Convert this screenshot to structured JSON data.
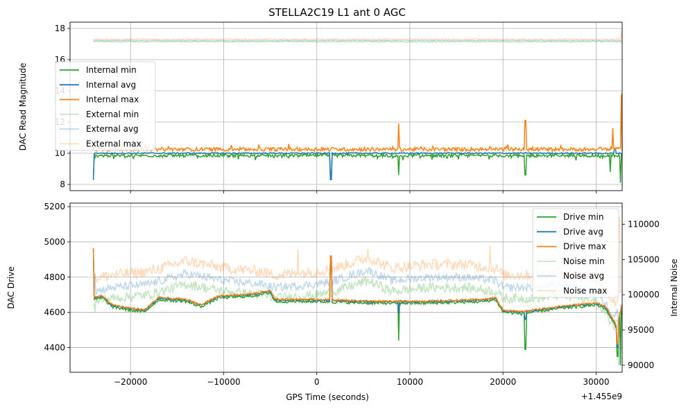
{
  "chart_data": [
    {
      "type": "line",
      "title": "STELLA2C19 L1 ant 0 AGC",
      "xlabel": "",
      "ylabel": "DAC Read Magnitude",
      "xlim": [
        -26500,
        32800
      ],
      "ylim": [
        7.6,
        18.4
      ],
      "xticks": [
        -20000,
        -10000,
        0,
        10000,
        20000,
        30000
      ],
      "yticks": [
        8,
        10,
        12,
        14,
        16,
        18
      ],
      "ytick_labels": [
        "8",
        "10",
        "12",
        "14",
        "16",
        "18"
      ],
      "grid": true,
      "legend_position": "center-left",
      "series": [
        {
          "name": "Internal min",
          "color": "#2ca02c",
          "alpha": 1,
          "base": 9.85,
          "noise": 0.1,
          "spikes": [
            [
              -24000,
              8.3
            ],
            [
              1500,
              8.3
            ],
            [
              8800,
              8.6
            ],
            [
              22400,
              8.6
            ],
            [
              31500,
              8.8
            ],
            [
              32600,
              8.1
            ]
          ]
        },
        {
          "name": "Internal avg",
          "color": "#1f77b4",
          "alpha": 1,
          "base": 10.0,
          "noise": 0.04,
          "spikes": [
            [
              -24000,
              8.3
            ],
            [
              1500,
              8.3
            ],
            [
              32000,
              10.3
            ]
          ]
        },
        {
          "name": "Internal max",
          "color": "#ff7f0e",
          "alpha": 1,
          "base": 10.25,
          "noise": 0.12,
          "spikes": [
            [
              -24000,
              10.7
            ],
            [
              8800,
              11.9
            ],
            [
              22400,
              12.1
            ],
            [
              31800,
              11.6
            ],
            [
              32700,
              13.8
            ]
          ]
        },
        {
          "name": "External min",
          "color": "#2ca02c",
          "alpha": 0.28,
          "base": 17.15,
          "noise": 0.04,
          "spikes": []
        },
        {
          "name": "External avg",
          "color": "#1f77b4",
          "alpha": 0.28,
          "base": 17.22,
          "noise": 0.03,
          "spikes": []
        },
        {
          "name": "External max",
          "color": "#ff7f0e",
          "alpha": 0.28,
          "base": 17.3,
          "noise": 0.04,
          "spikes": [
            [
              32700,
              17.9
            ]
          ]
        }
      ]
    },
    {
      "type": "line",
      "title": "",
      "xlabel": "GPS Time (seconds)",
      "x_offset_label": "+1.455e9",
      "ylabel": "DAC Drive",
      "ylabel_right": "Internal Noise",
      "xlim": [
        -26500,
        32800
      ],
      "ylim": [
        4260,
        5220
      ],
      "ylim_right": [
        89000,
        113000
      ],
      "xticks": [
        -20000,
        -10000,
        0,
        10000,
        20000,
        30000
      ],
      "xtick_labels": [
        "−20000",
        "−10000",
        "0",
        "10000",
        "20000",
        "30000"
      ],
      "yticks": [
        4400,
        4600,
        4800,
        5000,
        5200
      ],
      "ytick_labels": [
        "4400",
        "4600",
        "4800",
        "5000",
        "5200"
      ],
      "yticks_right": [
        90000,
        95000,
        100000,
        105000,
        110000
      ],
      "ytick_labels_right": [
        "90000",
        "95000",
        "100000",
        "105000",
        "110000"
      ],
      "grid": true,
      "legend_position": "upper-right",
      "drive_profile": [
        [
          -24000,
          4680
        ],
        [
          -23000,
          4690
        ],
        [
          -22000,
          4640
        ],
        [
          -20000,
          4620
        ],
        [
          -18500,
          4610
        ],
        [
          -17000,
          4680
        ],
        [
          -14000,
          4670
        ],
        [
          -12500,
          4640
        ],
        [
          -10500,
          4690
        ],
        [
          -7000,
          4700
        ],
        [
          -5000,
          4720
        ],
        [
          -4500,
          4670
        ],
        [
          0,
          4670
        ],
        [
          6000,
          4660
        ],
        [
          12000,
          4660
        ],
        [
          18000,
          4670
        ],
        [
          19200,
          4680
        ],
        [
          20000,
          4610
        ],
        [
          22000,
          4600
        ],
        [
          26000,
          4630
        ],
        [
          30000,
          4650
        ],
        [
          31000,
          4630
        ],
        [
          32200,
          4520
        ],
        [
          32800,
          4640
        ]
      ],
      "noise_profile": [
        [
          -24000,
          100500
        ],
        [
          -22000,
          101000
        ],
        [
          -18000,
          101500
        ],
        [
          -14000,
          103000
        ],
        [
          -10000,
          102000
        ],
        [
          -6000,
          101500
        ],
        [
          -4500,
          101000
        ],
        [
          0,
          101500
        ],
        [
          2000,
          102000
        ],
        [
          5500,
          103500
        ],
        [
          8000,
          102000
        ],
        [
          12000,
          102500
        ],
        [
          16000,
          102500
        ],
        [
          19200,
          102000
        ],
        [
          20000,
          101000
        ],
        [
          24000,
          101000
        ],
        [
          26000,
          101500
        ],
        [
          30000,
          100500
        ],
        [
          32000,
          97000
        ],
        [
          32800,
          99000
        ]
      ],
      "series": [
        {
          "name": "Drive min",
          "axis": "left",
          "color": "#2ca02c",
          "alpha": 1,
          "offset": -8,
          "noise": 8,
          "spikes": [
            [
              -24000,
              4960
            ],
            [
              1500,
              4910
            ],
            [
              8800,
              4440
            ],
            [
              22400,
              4390
            ],
            [
              32300,
              4350
            ],
            [
              32600,
              4300
            ]
          ]
        },
        {
          "name": "Drive avg",
          "axis": "left",
          "color": "#1f77b4",
          "alpha": 1,
          "offset": 0,
          "noise": 5,
          "spikes": [
            [
              -24000,
              4960
            ],
            [
              1500,
              4920
            ],
            [
              8800,
              4590
            ],
            [
              22400,
              4560
            ],
            [
              32300,
              4400
            ]
          ]
        },
        {
          "name": "Drive max",
          "axis": "left",
          "color": "#ff7f0e",
          "alpha": 1,
          "offset": 4,
          "noise": 5,
          "spikes": [
            [
              -24000,
              4965
            ],
            [
              1500,
              4920
            ],
            [
              32300,
              4420
            ]
          ]
        },
        {
          "name": "Noise min",
          "axis": "right",
          "color": "#2ca02c",
          "alpha": 0.28,
          "offset": -1500,
          "noise": 700,
          "spikes": [
            [
              -23800,
              97500
            ],
            [
              32500,
              90000
            ]
          ]
        },
        {
          "name": "Noise avg",
          "axis": "right",
          "color": "#1f77b4",
          "alpha": 0.28,
          "offset": 0,
          "noise": 600,
          "spikes": [
            [
              -23800,
              103000
            ],
            [
              32500,
              94000
            ]
          ]
        },
        {
          "name": "Noise max",
          "axis": "right",
          "color": "#ff7f0e",
          "alpha": 0.28,
          "offset": 1800,
          "noise": 800,
          "spikes": [
            [
              -2000,
              106500
            ],
            [
              5500,
              106500
            ],
            [
              18600,
              107000
            ],
            [
              32500,
              111000
            ]
          ]
        }
      ]
    }
  ]
}
